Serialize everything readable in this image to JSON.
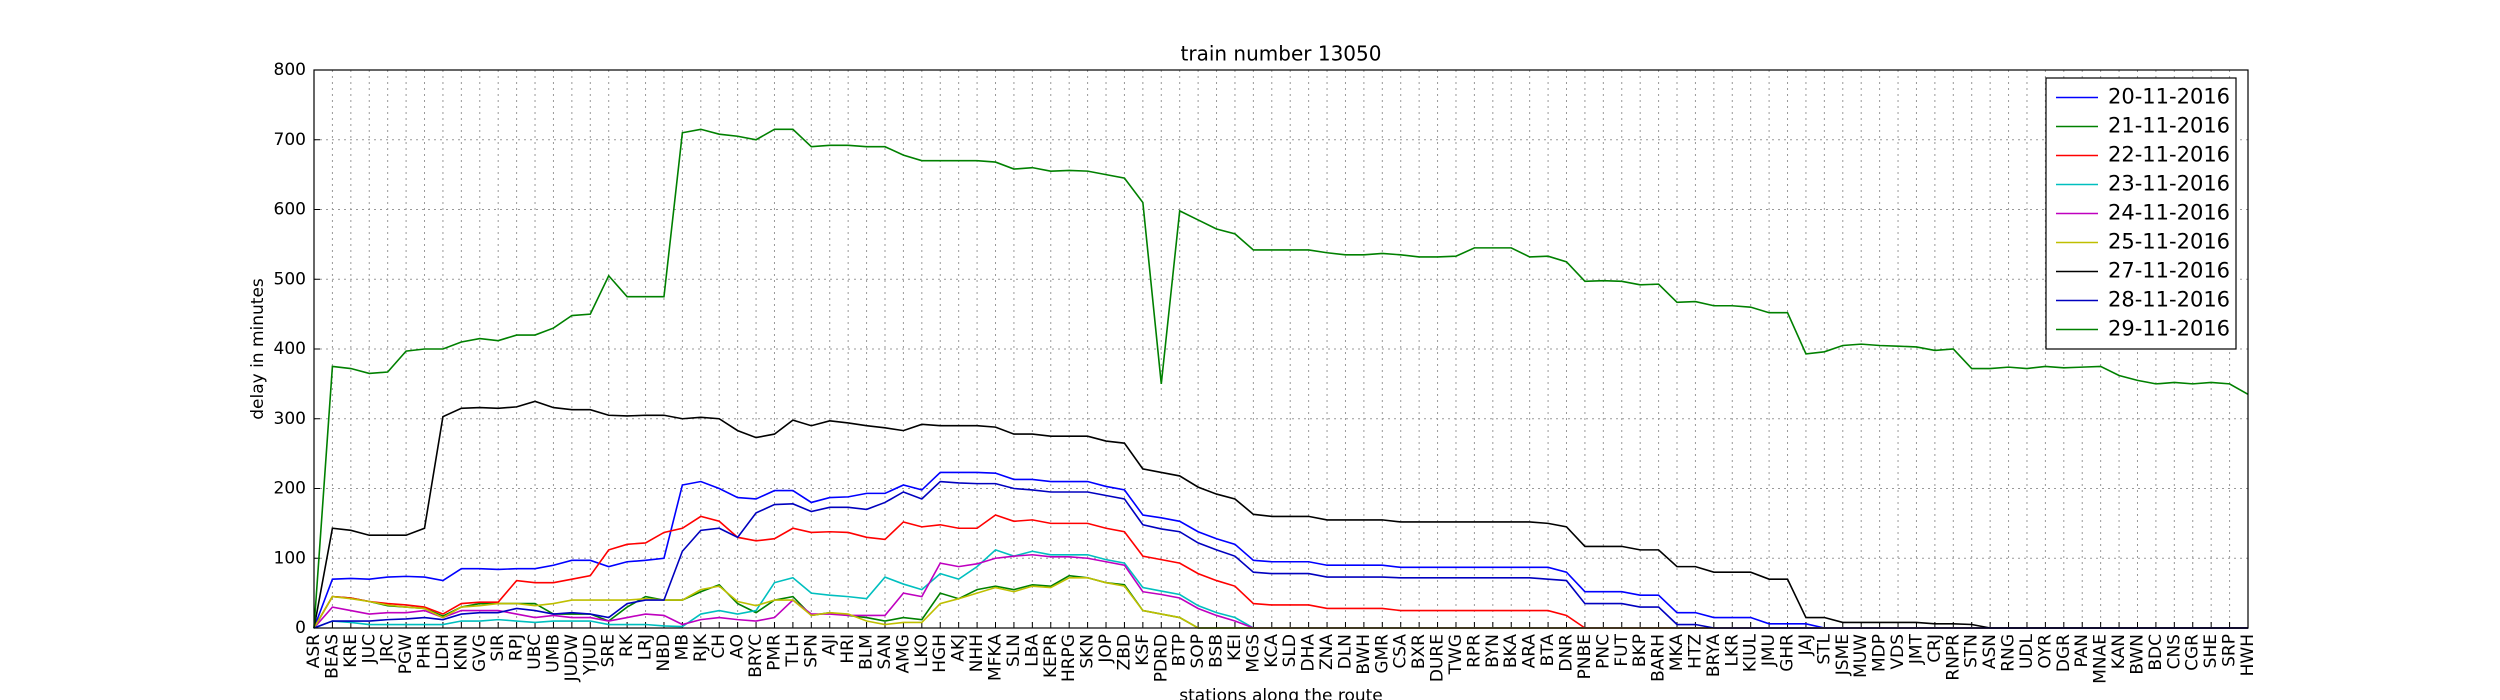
{
  "chart_data": {
    "type": "line",
    "title": "train number 13050",
    "x_label": "stations along the route",
    "y_label": "delay in minutes",
    "categories": [
      "ASR",
      "BEAS",
      "KRE",
      "JUC",
      "JRC",
      "PGW",
      "PHR",
      "LDH",
      "KNN",
      "GVG",
      "SIR",
      "RPJ",
      "UBC",
      "UMB",
      "JUDW",
      "YJUD",
      "SRE",
      "RK",
      "LRJ",
      "NBD",
      "MB",
      "RJK",
      "CH",
      "AO",
      "BRYC",
      "PMR",
      "TLH",
      "SPN",
      "AJI",
      "HRI",
      "BLM",
      "SAN",
      "AMG",
      "LKO",
      "HGH",
      "AKJ",
      "NHH",
      "MFKA",
      "SLN",
      "LBA",
      "KEPR",
      "HRPG",
      "SKN",
      "JOP",
      "ZBD",
      "KSF",
      "PDRD",
      "BTP",
      "SOP",
      "BSB",
      "KEI",
      "MGS",
      "KCA",
      "SLD",
      "DHA",
      "ZNA",
      "DLN",
      "BWH",
      "GMR",
      "CSA",
      "BXR",
      "DURE",
      "TWG",
      "RPR",
      "BYN",
      "BKA",
      "ARA",
      "BTA",
      "DNR",
      "PNBE",
      "PNC",
      "FUT",
      "BKP",
      "BARH",
      "MKA",
      "HTZ",
      "BRYA",
      "LKR",
      "KIUL",
      "JMU",
      "GHR",
      "JAJ",
      "STL",
      "JSME",
      "MUW",
      "MDP",
      "VDS",
      "JMT",
      "CRJ",
      "RNPR",
      "STN",
      "ASN",
      "RNG",
      "UDL",
      "OYR",
      "DGR",
      "PAN",
      "MNAE",
      "KAN",
      "BWN",
      "BDC",
      "CNS",
      "CGR",
      "SHE",
      "SRP",
      "HWH"
    ],
    "series": [
      {
        "name": "20-11-2016",
        "color": "#0000ff",
        "values": [
          0,
          70,
          71,
          70,
          73,
          74,
          73,
          68,
          85,
          85,
          84,
          85,
          85,
          90,
          97,
          97,
          88,
          95,
          97,
          100,
          205,
          210,
          200,
          187,
          185,
          197,
          197,
          180,
          187,
          188,
          193,
          193,
          205,
          198,
          223,
          223,
          223,
          222,
          213,
          213,
          210,
          210,
          210,
          203,
          198,
          162,
          158,
          153,
          138,
          128,
          120,
          97,
          95,
          95,
          95,
          90,
          90,
          90,
          90,
          87,
          87,
          87,
          87,
          87,
          87,
          87,
          87,
          87,
          80,
          52,
          52,
          52,
          47,
          47,
          22,
          22,
          15,
          15,
          15,
          6,
          6,
          6,
          0,
          0,
          0,
          0,
          0,
          0,
          0,
          0,
          0,
          0,
          0,
          0,
          0,
          0,
          0,
          0,
          0,
          0,
          0,
          0,
          0,
          0,
          0,
          0
        ]
      },
      {
        "name": "21-11-2016",
        "color": "#008000",
        "values": [
          0,
          45,
          43,
          38,
          32,
          30,
          28,
          17,
          30,
          35,
          35,
          35,
          35,
          20,
          20,
          20,
          10,
          30,
          45,
          40,
          40,
          52,
          62,
          35,
          22,
          40,
          45,
          18,
          22,
          18,
          15,
          10,
          15,
          12,
          50,
          42,
          55,
          60,
          55,
          62,
          60,
          75,
          72,
          65,
          62,
          25,
          20,
          15,
          0,
          0,
          0,
          0,
          0,
          0,
          0,
          0,
          0,
          0,
          0,
          0,
          0,
          0,
          0,
          0,
          0,
          0,
          0,
          0,
          0,
          0,
          0,
          0,
          0,
          0,
          0,
          0,
          0,
          0,
          0,
          0,
          0,
          0,
          0,
          0,
          0,
          0,
          0,
          0,
          0,
          0,
          0,
          0,
          0,
          0,
          0,
          0,
          0,
          0,
          0,
          0,
          0,
          0,
          0,
          0,
          0,
          0
        ]
      },
      {
        "name": "22-11-2016",
        "color": "#ff0000",
        "values": [
          0,
          45,
          43,
          38,
          35,
          33,
          30,
          20,
          35,
          37,
          37,
          68,
          65,
          65,
          70,
          75,
          112,
          120,
          122,
          137,
          143,
          160,
          153,
          130,
          125,
          128,
          143,
          137,
          138,
          137,
          130,
          127,
          152,
          145,
          148,
          143,
          143,
          162,
          153,
          155,
          150,
          150,
          150,
          143,
          138,
          103,
          98,
          93,
          78,
          68,
          60,
          35,
          33,
          33,
          33,
          28,
          28,
          28,
          28,
          25,
          25,
          25,
          25,
          25,
          25,
          25,
          25,
          25,
          18,
          0,
          0,
          0,
          0,
          0,
          0,
          0,
          0,
          0,
          0,
          0,
          0,
          0,
          0,
          0,
          0,
          0,
          0,
          0,
          0,
          0,
          0,
          0,
          0,
          0,
          0,
          0,
          0,
          0,
          0,
          0,
          0,
          0,
          0,
          0,
          0,
          0
        ]
      },
      {
        "name": "23-11-2016",
        "color": "#00bfbf",
        "values": [
          0,
          10,
          8,
          5,
          5,
          5,
          5,
          5,
          10,
          10,
          12,
          10,
          8,
          10,
          10,
          10,
          5,
          5,
          5,
          3,
          2,
          20,
          25,
          20,
          25,
          65,
          72,
          50,
          47,
          45,
          42,
          73,
          63,
          55,
          78,
          70,
          88,
          112,
          103,
          110,
          105,
          105,
          105,
          98,
          93,
          58,
          53,
          48,
          32,
          22,
          15,
          0,
          0,
          0,
          0,
          0,
          0,
          0,
          0,
          0,
          0,
          0,
          0,
          0,
          0,
          0,
          0,
          0,
          0,
          0,
          0,
          0,
          0,
          0,
          0,
          0,
          0,
          0,
          0,
          0,
          0,
          0,
          0,
          0,
          0,
          0,
          0,
          0,
          0,
          0,
          0,
          0,
          0,
          0,
          0,
          0,
          0,
          0,
          0,
          0,
          0,
          0,
          0,
          0,
          0,
          0
        ]
      },
      {
        "name": "24-11-2016",
        "color": "#bf00bf",
        "values": [
          0,
          30,
          25,
          20,
          22,
          22,
          25,
          15,
          25,
          25,
          25,
          20,
          15,
          18,
          15,
          15,
          10,
          15,
          20,
          18,
          5,
          12,
          15,
          12,
          10,
          15,
          40,
          20,
          20,
          18,
          18,
          18,
          50,
          45,
          93,
          88,
          92,
          100,
          103,
          105,
          102,
          102,
          100,
          95,
          90,
          52,
          48,
          43,
          28,
          18,
          10,
          0,
          0,
          0,
          0,
          0,
          0,
          0,
          0,
          0,
          0,
          0,
          0,
          0,
          0,
          0,
          0,
          0,
          0,
          0,
          0,
          0,
          0,
          0,
          0,
          0,
          0,
          0,
          0,
          0,
          0,
          0,
          0,
          0,
          0,
          0,
          0,
          0,
          0,
          0,
          0,
          0,
          0,
          0,
          0,
          0,
          0,
          0,
          0,
          0,
          0,
          0,
          0,
          0,
          0,
          0
        ]
      },
      {
        "name": "25-11-2016",
        "color": "#bfbf00",
        "values": [
          0,
          45,
          42,
          38,
          33,
          30,
          28,
          15,
          30,
          32,
          35,
          35,
          32,
          35,
          40,
          40,
          40,
          40,
          42,
          40,
          40,
          55,
          60,
          38,
          32,
          40,
          40,
          18,
          22,
          20,
          10,
          5,
          8,
          8,
          35,
          42,
          50,
          58,
          52,
          60,
          58,
          72,
          72,
          65,
          60,
          25,
          20,
          15,
          0,
          0,
          0,
          0,
          0,
          0,
          0,
          0,
          0,
          0,
          0,
          0,
          0,
          0,
          0,
          0,
          0,
          0,
          0,
          0,
          0,
          0,
          0,
          0,
          0,
          0,
          0,
          0,
          0,
          0,
          0,
          0,
          0,
          0,
          0,
          0,
          0,
          0,
          0,
          0,
          0,
          0,
          0,
          0,
          0,
          0,
          0,
          0,
          0,
          0,
          0,
          0,
          0,
          0,
          0,
          0,
          0,
          0
        ]
      },
      {
        "name": "27-11-2016",
        "color": "#000000",
        "values": [
          0,
          143,
          140,
          133,
          133,
          133,
          143,
          303,
          315,
          316,
          315,
          317,
          325,
          316,
          313,
          313,
          305,
          304,
          305,
          305,
          300,
          302,
          300,
          283,
          273,
          278,
          298,
          290,
          297,
          294,
          290,
          287,
          283,
          292,
          290,
          290,
          290,
          288,
          278,
          278,
          275,
          275,
          275,
          268,
          265,
          228,
          223,
          218,
          202,
          192,
          185,
          163,
          160,
          160,
          160,
          155,
          155,
          155,
          155,
          152,
          152,
          152,
          152,
          152,
          152,
          152,
          152,
          150,
          145,
          117,
          117,
          117,
          112,
          112,
          88,
          88,
          80,
          80,
          80,
          70,
          70,
          15,
          15,
          8,
          8,
          8,
          8,
          8,
          6,
          6,
          5,
          0,
          0,
          0,
          0,
          0,
          0,
          0,
          0,
          0,
          0,
          0,
          0,
          0,
          0,
          0
        ]
      },
      {
        "name": "28-11-2016",
        "color": "#0000bf",
        "values": [
          0,
          10,
          10,
          10,
          12,
          13,
          15,
          12,
          20,
          22,
          22,
          28,
          25,
          20,
          22,
          20,
          15,
          35,
          40,
          40,
          110,
          140,
          143,
          130,
          165,
          177,
          178,
          167,
          173,
          173,
          170,
          180,
          195,
          185,
          210,
          208,
          207,
          207,
          200,
          198,
          195,
          195,
          195,
          190,
          185,
          148,
          142,
          138,
          122,
          112,
          103,
          80,
          78,
          78,
          78,
          73,
          73,
          73,
          73,
          72,
          72,
          72,
          72,
          72,
          72,
          72,
          72,
          70,
          68,
          35,
          35,
          35,
          30,
          30,
          5,
          5,
          0,
          0,
          0,
          0,
          0,
          0,
          0,
          0,
          0,
          0,
          0,
          0,
          0,
          0,
          0,
          0,
          0,
          0,
          0,
          0,
          0,
          0,
          0,
          0,
          0,
          0,
          0,
          0,
          0,
          0
        ]
      },
      {
        "name": "29-11-2016",
        "color": "#008000",
        "values": [
          0,
          375,
          372,
          365,
          367,
          397,
          400,
          400,
          410,
          415,
          412,
          420,
          420,
          430,
          448,
          450,
          505,
          475,
          475,
          475,
          710,
          715,
          708,
          705,
          700,
          715,
          715,
          690,
          692,
          692,
          690,
          690,
          678,
          670,
          670,
          670,
          670,
          668,
          658,
          660,
          655,
          656,
          655,
          650,
          645,
          610,
          350,
          598,
          585,
          572,
          565,
          542,
          542,
          542,
          542,
          538,
          535,
          535,
          537,
          535,
          532,
          532,
          533,
          545,
          545,
          545,
          532,
          533,
          525,
          497,
          498,
          497,
          492,
          493,
          467,
          468,
          462,
          462,
          460,
          452,
          452,
          393,
          396,
          405,
          407,
          405,
          404,
          403,
          398,
          400,
          372,
          372,
          374,
          372,
          375,
          373,
          374,
          375,
          362,
          355,
          350,
          352,
          350,
          352,
          350,
          335
        ]
      }
    ],
    "ylim": [
      0,
      800
    ],
    "yticks": [
      0,
      100,
      200,
      300,
      400,
      500,
      600,
      700,
      800
    ],
    "grid": true,
    "legend": "upper right"
  }
}
